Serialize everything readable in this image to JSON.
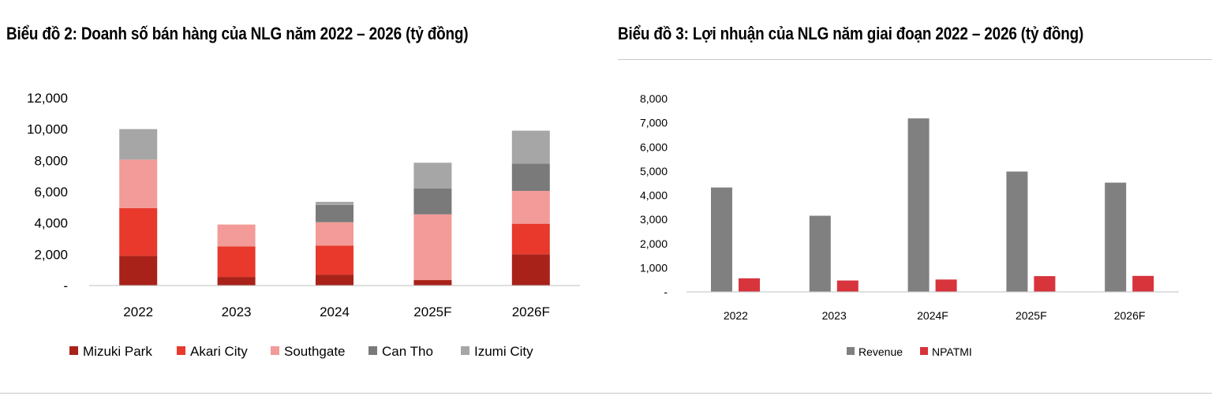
{
  "chart_data": [
    {
      "type": "bar",
      "stacked": true,
      "title": "Biểu đồ 2: Doanh số bán hàng của NLG năm 2022 – 2026 (tỷ đồng)",
      "categories": [
        "2022",
        "2023",
        "2024",
        "2025F",
        "2026F"
      ],
      "ylim": [
        0,
        12000
      ],
      "yticks": [
        "-",
        "2,000",
        "4,000",
        "6,000",
        "8,000",
        "10,000",
        "12,000"
      ],
      "legend_position": "bottom",
      "grid": false,
      "series": [
        {
          "name": "Mizuki Park",
          "color": "#a8221a",
          "values": [
            1900,
            550,
            700,
            350,
            2000
          ]
        },
        {
          "name": "Akari City",
          "color": "#e8392c",
          "values": [
            3050,
            1950,
            1850,
            0,
            1950
          ]
        },
        {
          "name": "Southgate",
          "color": "#f29b98",
          "values": [
            3100,
            1400,
            1500,
            4200,
            2100
          ]
        },
        {
          "name": "Can Tho",
          "color": "#7a7a7a",
          "values": [
            0,
            0,
            1100,
            1650,
            1750
          ]
        },
        {
          "name": "Izumi City",
          "color": "#a6a6a6",
          "values": [
            1950,
            0,
            200,
            1650,
            2100
          ]
        }
      ]
    },
    {
      "type": "bar",
      "title": "Biểu đồ 3: Lợi nhuận của NLG năm giai đoạn 2022 – 2026 (tỷ đồng)",
      "categories": [
        "2022",
        "2023",
        "2024F",
        "2025F",
        "2026F"
      ],
      "ylim": [
        0,
        8000
      ],
      "yticks": [
        "-",
        "1,000",
        "2,000",
        "3,000",
        "4,000",
        "5,000",
        "6,000",
        "7,000",
        "8,000"
      ],
      "legend_position": "bottom",
      "grid": false,
      "series": [
        {
          "name": "Revenue",
          "color": "#808080",
          "values": [
            4320,
            3150,
            7180,
            4980,
            4520
          ]
        },
        {
          "name": "NPATMI",
          "color": "#d7343c",
          "values": [
            560,
            470,
            510,
            650,
            660
          ]
        }
      ]
    }
  ]
}
